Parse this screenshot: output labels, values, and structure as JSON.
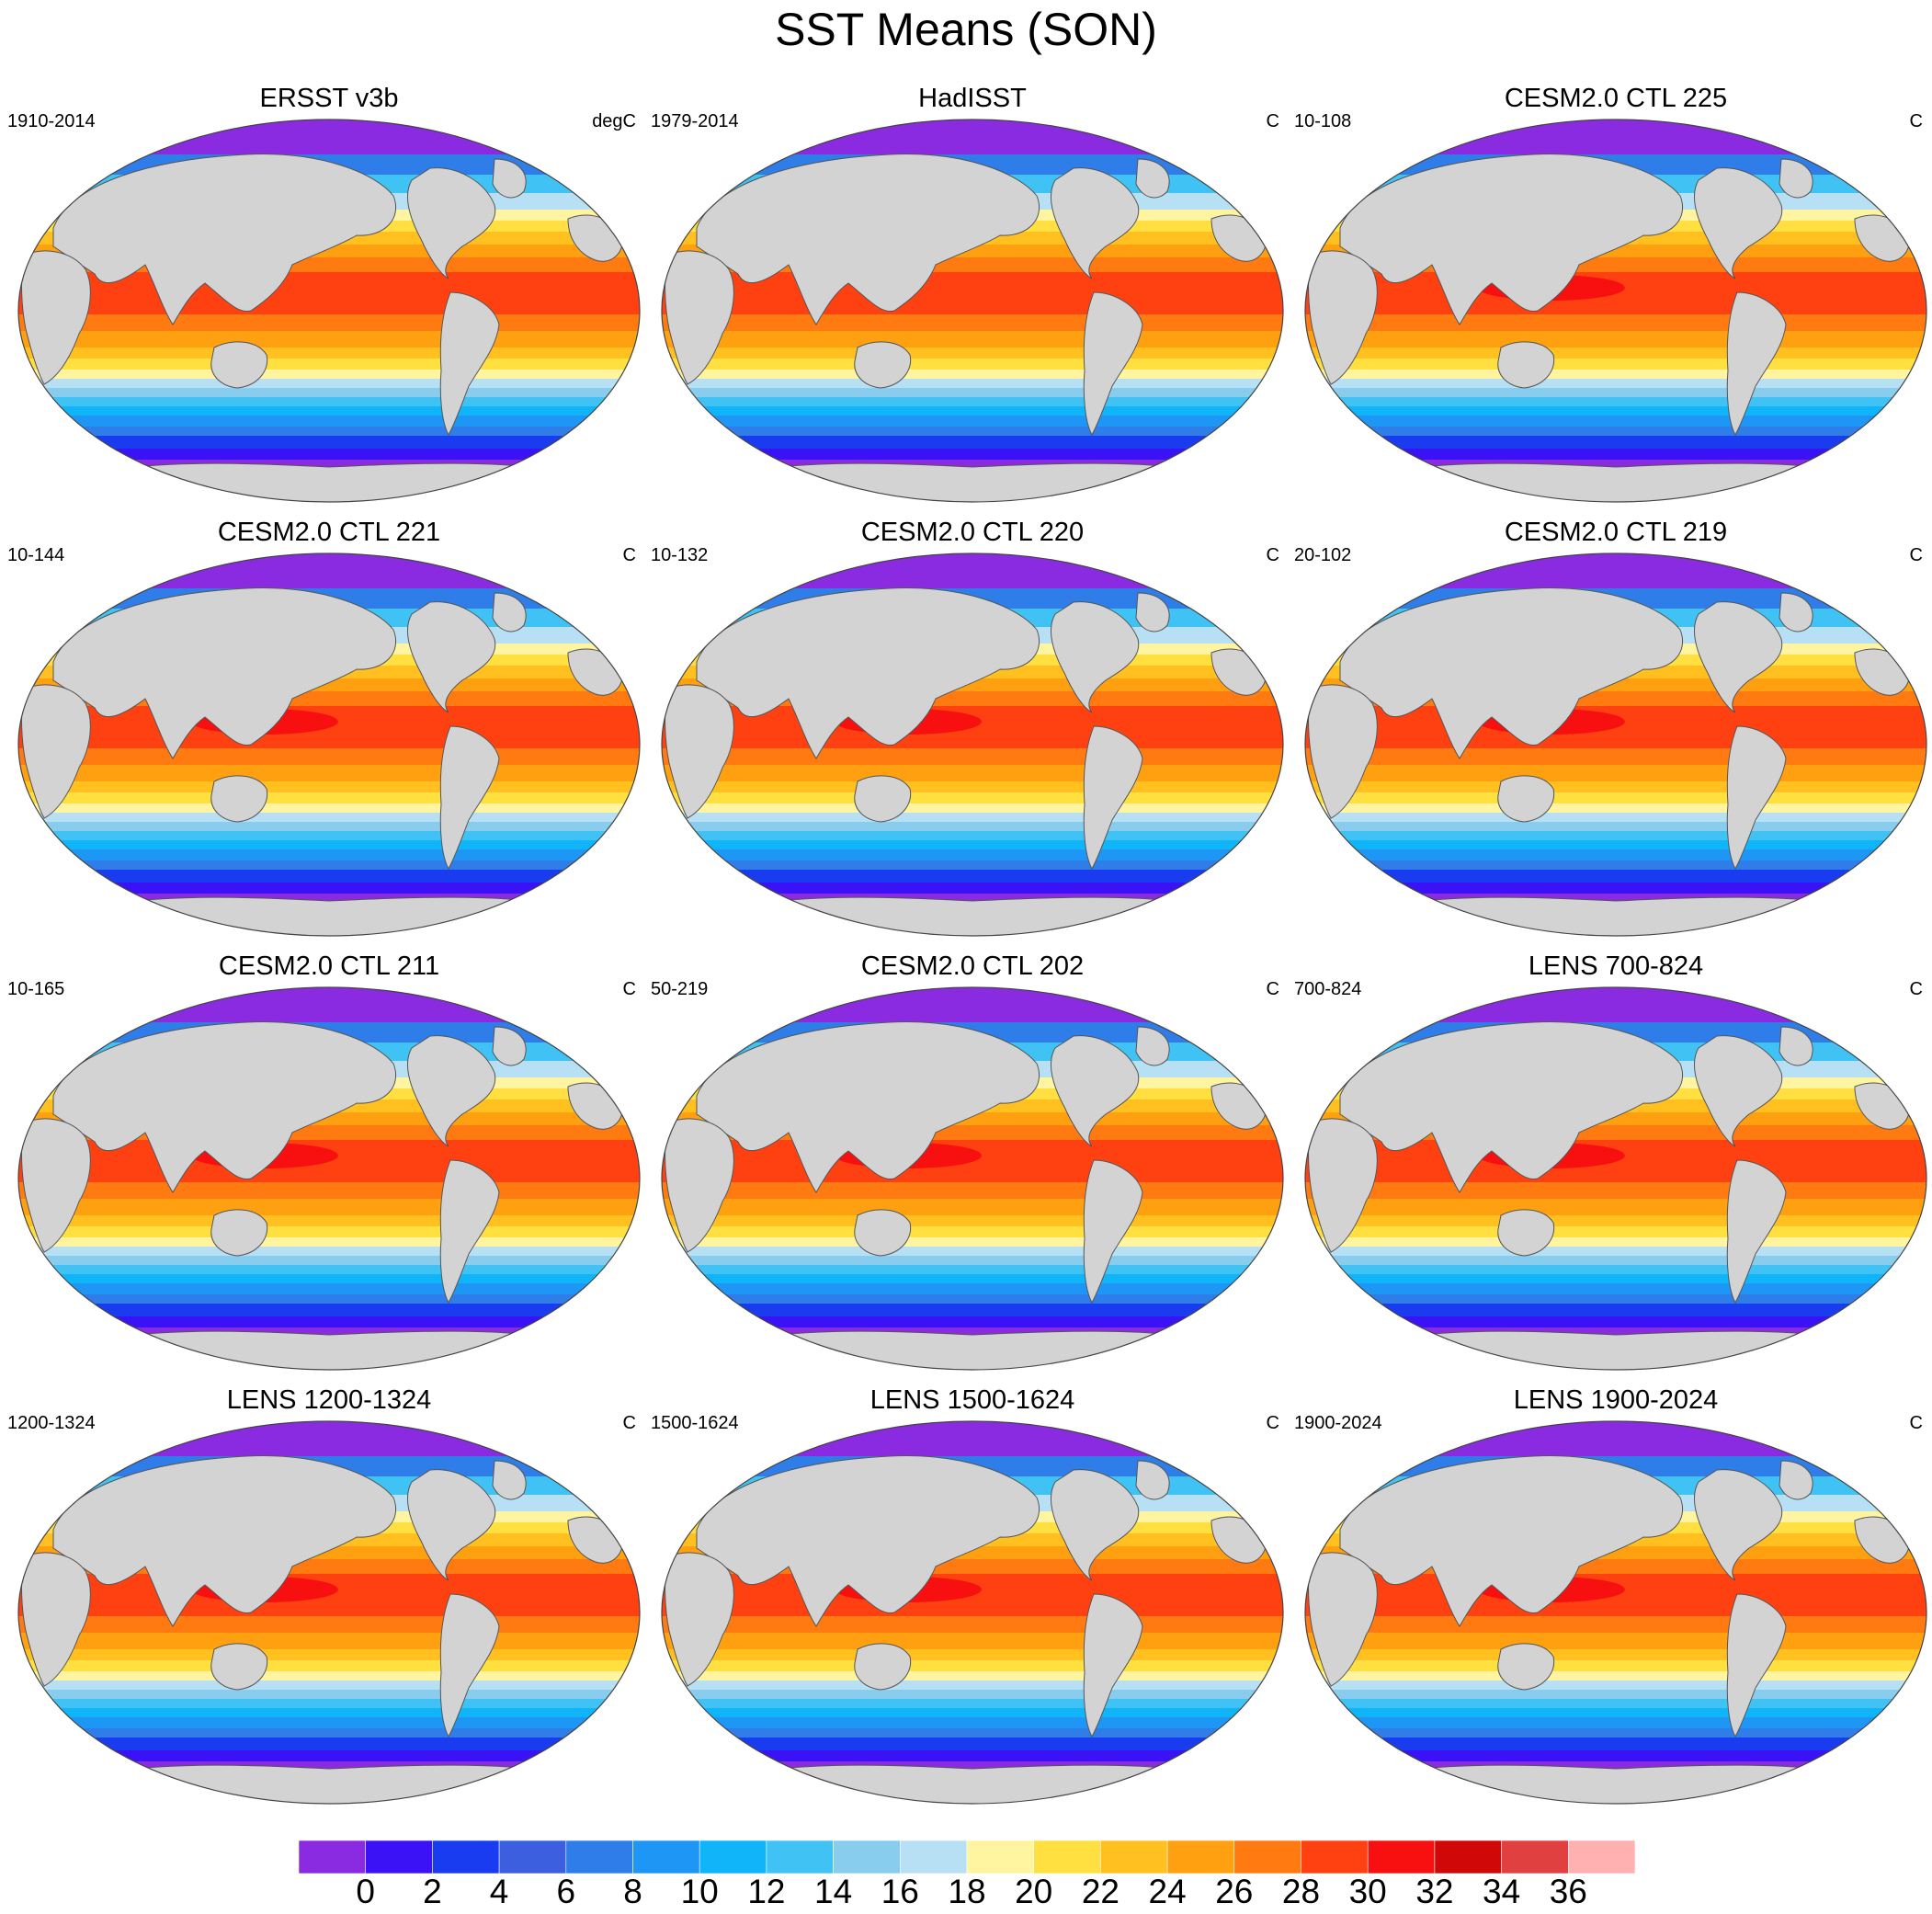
{
  "title": "SST Means (SON)",
  "panels": [
    {
      "title": "ERSST v3b",
      "period": "1910-2014",
      "units": "degC"
    },
    {
      "title": "HadISST",
      "period": "1979-2014",
      "units": "C"
    },
    {
      "title": "CESM2.0 CTL 225",
      "period": "10-108",
      "units": "C"
    },
    {
      "title": "CESM2.0 CTL 221",
      "period": "10-144",
      "units": "C"
    },
    {
      "title": "CESM2.0 CTL 220",
      "period": "10-132",
      "units": "C"
    },
    {
      "title": "CESM2.0 CTL 219",
      "period": "20-102",
      "units": "C"
    },
    {
      "title": "CESM2.0 CTL 211",
      "period": "10-165",
      "units": "C"
    },
    {
      "title": "CESM2.0 CTL 202",
      "period": "50-219",
      "units": "C"
    },
    {
      "title": "LENS 700-824",
      "period": "700-824",
      "units": "C"
    },
    {
      "title": "LENS 1200-1324",
      "period": "1200-1324",
      "units": "C"
    },
    {
      "title": "LENS 1500-1624",
      "period": "1500-1624",
      "units": "C"
    },
    {
      "title": "LENS 1900-2024",
      "period": "1900-2024",
      "units": "C"
    }
  ],
  "colorbar": {
    "ticks": [
      "0",
      "2",
      "4",
      "6",
      "8",
      "10",
      "12",
      "14",
      "16",
      "18",
      "20",
      "22",
      "24",
      "26",
      "28",
      "30",
      "32",
      "34",
      "36"
    ],
    "colors": [
      "#8a2be2",
      "#3a12f5",
      "#1a3cf0",
      "#3c5fe0",
      "#2f7de8",
      "#1e96f5",
      "#10b4f8",
      "#40c2f5",
      "#88ccee",
      "#b8e0f4",
      "#fff5a0",
      "#ffe040",
      "#ffc020",
      "#ffa010",
      "#ff7a10",
      "#ff4010",
      "#f81010",
      "#d00808",
      "#e04040",
      "#ffb0b0"
    ]
  },
  "land_color": "#d3d3d3",
  "sea_ice_color": "#8a2be2"
}
